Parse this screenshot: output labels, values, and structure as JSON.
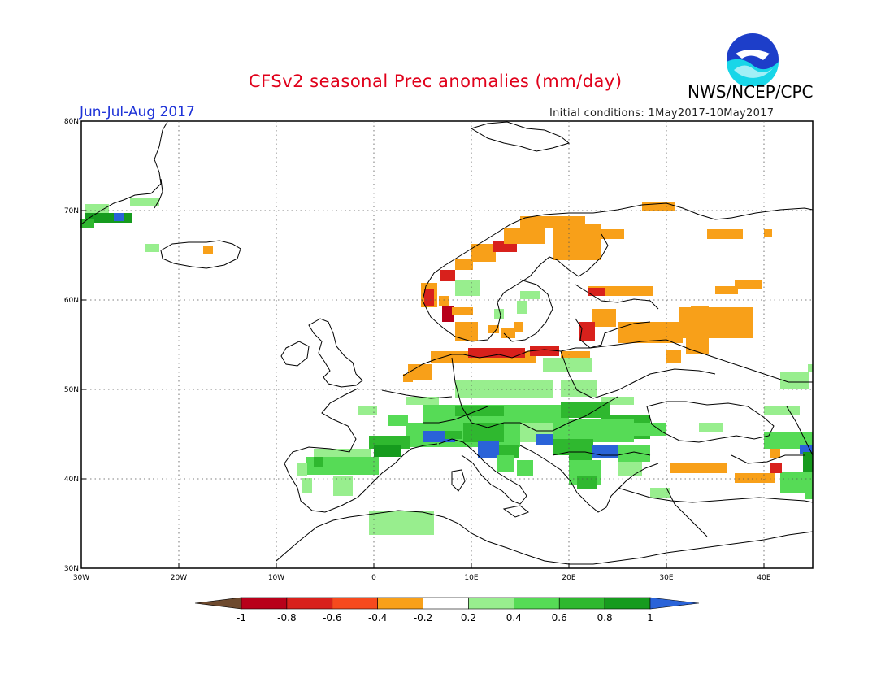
{
  "title": "CFSv2 seasonal Prec anomalies (mm/day)",
  "agency": "NWS/NCEP/CPC",
  "logo_text": "NOAA",
  "season": "Jun-Jul-Aug 2017",
  "initial_conditions": "Initial conditions: 1May2017-10May2017",
  "map": {
    "lon_range": [
      -30,
      45
    ],
    "lat_range": [
      30,
      80
    ],
    "lat_labels": [
      "30N",
      "40N",
      "50N",
      "60N",
      "70N",
      "80N"
    ],
    "lon_labels": [
      "30W",
      "20W",
      "10W",
      "0",
      "10E",
      "20E",
      "30E",
      "40E"
    ],
    "grid": "dotted"
  },
  "legend": {
    "labels": [
      "-1",
      "-0.8",
      "-0.6",
      "-0.4",
      "-0.2",
      "0.2",
      "0.4",
      "0.6",
      "0.8",
      "1"
    ],
    "colors": [
      "#6e4a2e",
      "#b8001a",
      "#d8211c",
      "#f64a1e",
      "#f8a019",
      "#ffffff",
      "#98ee8e",
      "#56db56",
      "#2fb82f",
      "#169b1e",
      "#2a63d8"
    ]
  },
  "colors": {
    "strong_negative": "#d8211c",
    "negative": "#f8a019",
    "positive_light": "#98ee8e",
    "positive": "#56db56",
    "positive_strong": "#169b1e",
    "very_positive": "#2a63d8"
  }
}
